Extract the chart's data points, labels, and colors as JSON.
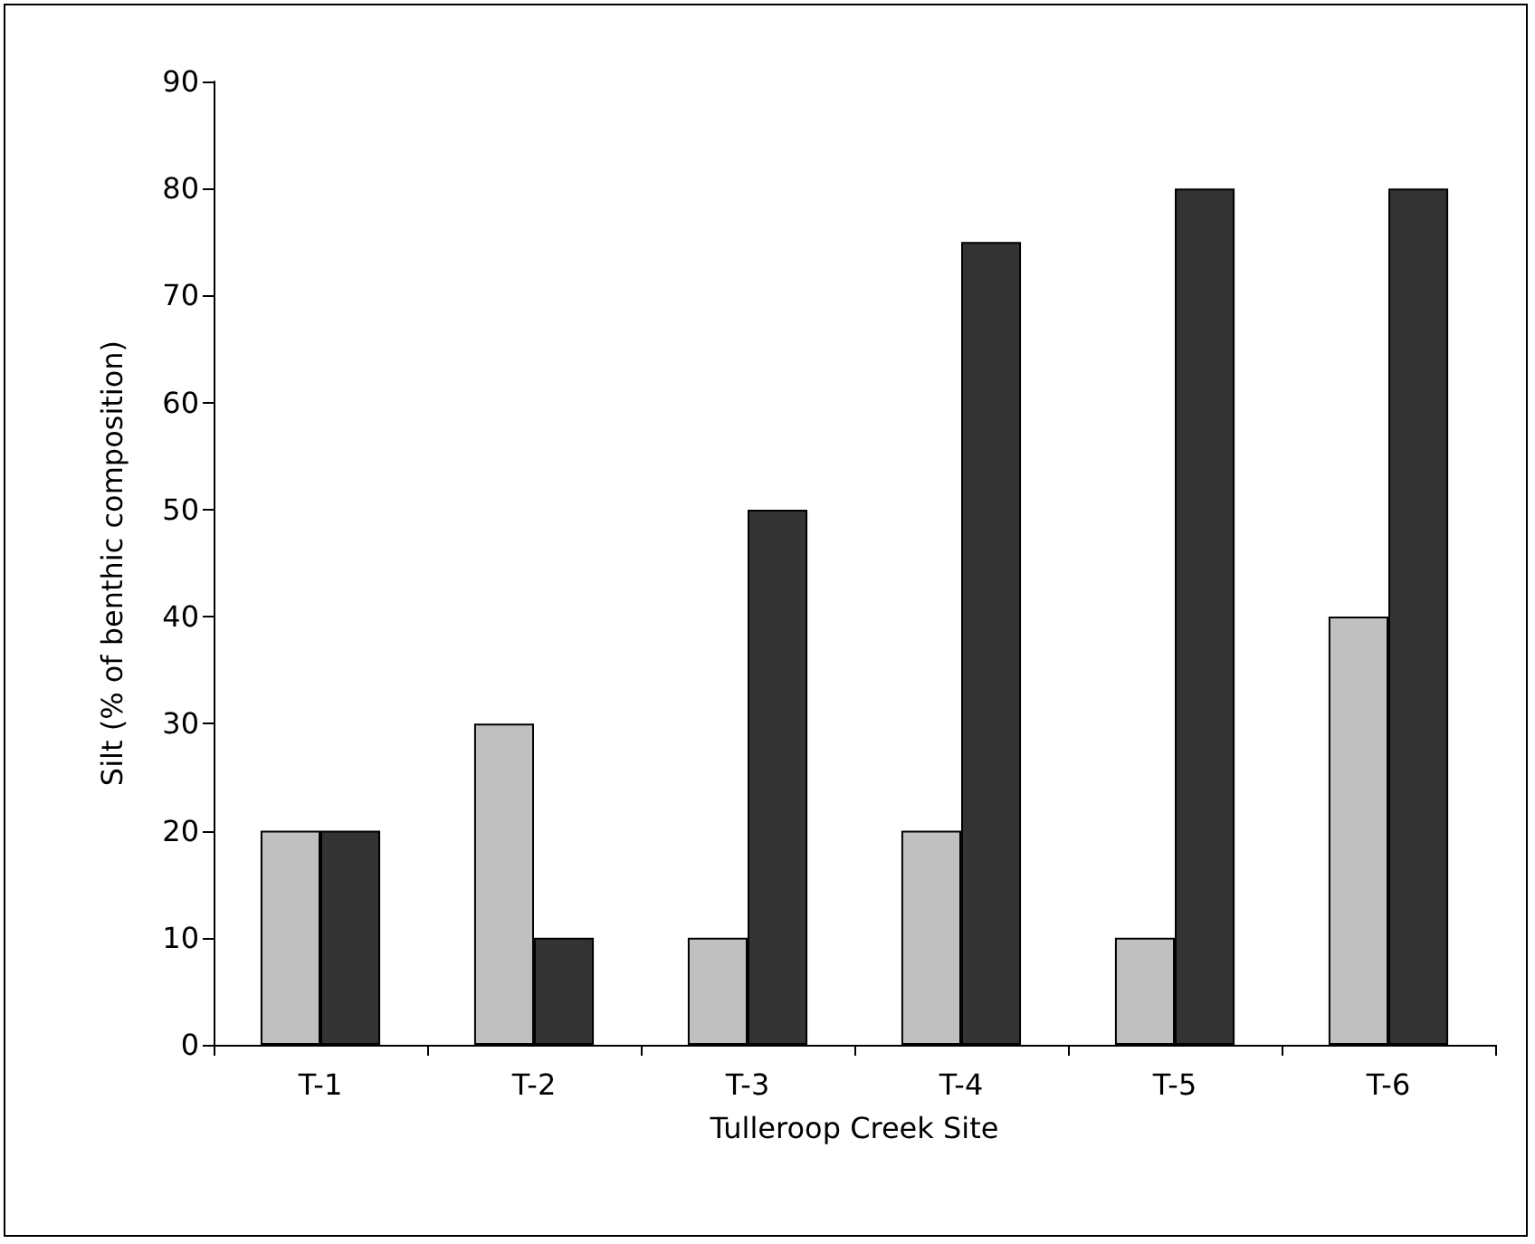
{
  "chart_data": {
    "type": "bar",
    "xlabel": "Tulleroop Creek Site",
    "ylabel": "Silt (% of benthic composition)",
    "categories": [
      "T-1",
      "T-2",
      "T-3",
      "T-4",
      "T-5",
      "T-6"
    ],
    "series": [
      {
        "color": "#c0c0c0",
        "values": [
          20,
          30,
          10,
          20,
          10,
          40
        ]
      },
      {
        "color": "#333333",
        "values": [
          20,
          10,
          50,
          75,
          80,
          80
        ]
      }
    ],
    "ylim": [
      0,
      90
    ],
    "yticks": [
      0,
      10,
      20,
      30,
      40,
      50,
      60,
      70,
      80,
      90
    ],
    "grid": false
  }
}
